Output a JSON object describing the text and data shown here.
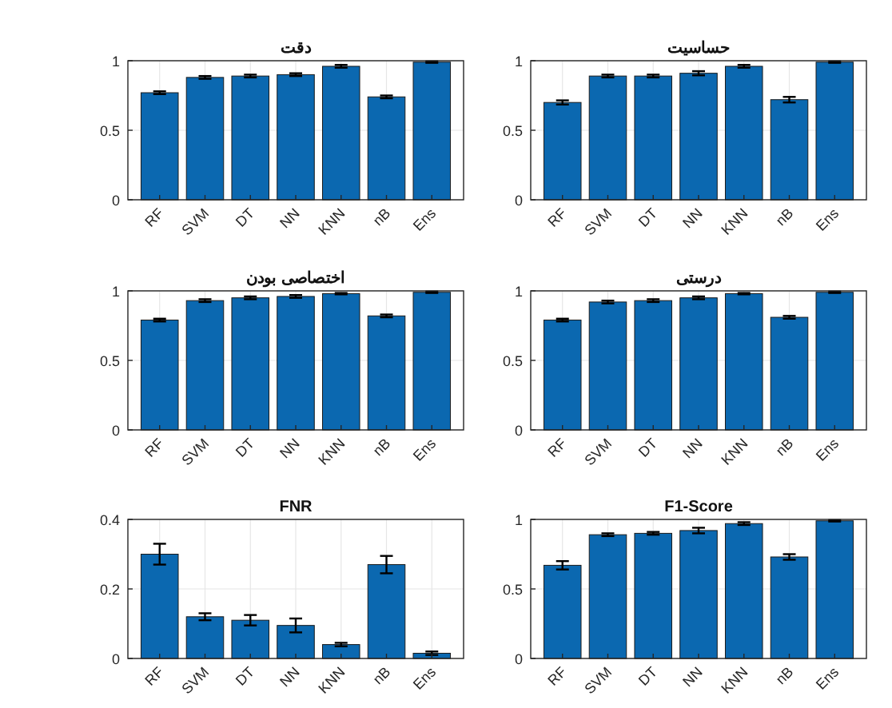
{
  "chart_data": [
    {
      "type": "bar",
      "title": "دقت",
      "categories": [
        "RF",
        "SVM",
        "DT",
        "NN",
        "KNN",
        "nB",
        "Ens"
      ],
      "values": [
        0.77,
        0.88,
        0.89,
        0.9,
        0.96,
        0.74,
        0.99
      ],
      "errors": [
        0.01,
        0.01,
        0.01,
        0.01,
        0.01,
        0.01,
        0.005
      ],
      "color": "#0b68b0",
      "ylim": [
        0,
        1
      ],
      "yticks": [
        0,
        0.5,
        1
      ],
      "grid": true
    },
    {
      "type": "bar",
      "title": "حساسیت",
      "categories": [
        "RF",
        "SVM",
        "DT",
        "NN",
        "KNN",
        "nB",
        "Ens"
      ],
      "values": [
        0.7,
        0.89,
        0.89,
        0.91,
        0.96,
        0.72,
        0.99
      ],
      "errors": [
        0.015,
        0.01,
        0.01,
        0.015,
        0.01,
        0.02,
        0.005
      ],
      "color": "#0b68b0",
      "ylim": [
        0,
        1
      ],
      "yticks": [
        0,
        0.5,
        1
      ],
      "grid": true
    },
    {
      "type": "bar",
      "title": "اختصاصی بودن",
      "categories": [
        "RF",
        "SVM",
        "DT",
        "NN",
        "KNN",
        "nB",
        "Ens"
      ],
      "values": [
        0.79,
        0.93,
        0.95,
        0.96,
        0.98,
        0.82,
        0.99
      ],
      "errors": [
        0.01,
        0.01,
        0.01,
        0.01,
        0.005,
        0.01,
        0.005
      ],
      "color": "#0b68b0",
      "ylim": [
        0,
        1
      ],
      "yticks": [
        0,
        0.5,
        1
      ],
      "grid": true
    },
    {
      "type": "bar",
      "title": "درستی",
      "categories": [
        "RF",
        "SVM",
        "DT",
        "NN",
        "KNN",
        "nB",
        "Ens"
      ],
      "values": [
        0.79,
        0.92,
        0.93,
        0.95,
        0.98,
        0.81,
        0.99
      ],
      "errors": [
        0.01,
        0.01,
        0.01,
        0.01,
        0.005,
        0.01,
        0.005
      ],
      "color": "#0b68b0",
      "ylim": [
        0,
        1
      ],
      "yticks": [
        0,
        0.5,
        1
      ],
      "grid": true
    },
    {
      "type": "bar",
      "title": "FNR",
      "categories": [
        "RF",
        "SVM",
        "DT",
        "NN",
        "KNN",
        "nB",
        "Ens"
      ],
      "values": [
        0.3,
        0.12,
        0.11,
        0.095,
        0.04,
        0.27,
        0.015
      ],
      "errors": [
        0.03,
        0.01,
        0.015,
        0.02,
        0.005,
        0.025,
        0.005
      ],
      "color": "#0b68b0",
      "ylim": [
        0,
        0.4
      ],
      "yticks": [
        0,
        0.2,
        0.4
      ],
      "grid": true
    },
    {
      "type": "bar",
      "title": "F1-Score",
      "categories": [
        "RF",
        "SVM",
        "DT",
        "NN",
        "KNN",
        "nB",
        "Ens"
      ],
      "values": [
        0.67,
        0.89,
        0.9,
        0.92,
        0.97,
        0.73,
        0.99
      ],
      "errors": [
        0.03,
        0.01,
        0.01,
        0.02,
        0.01,
        0.02,
        0.005
      ],
      "color": "#0b68b0",
      "ylim": [
        0,
        1
      ],
      "yticks": [
        0,
        0.5,
        1
      ],
      "grid": true
    }
  ]
}
